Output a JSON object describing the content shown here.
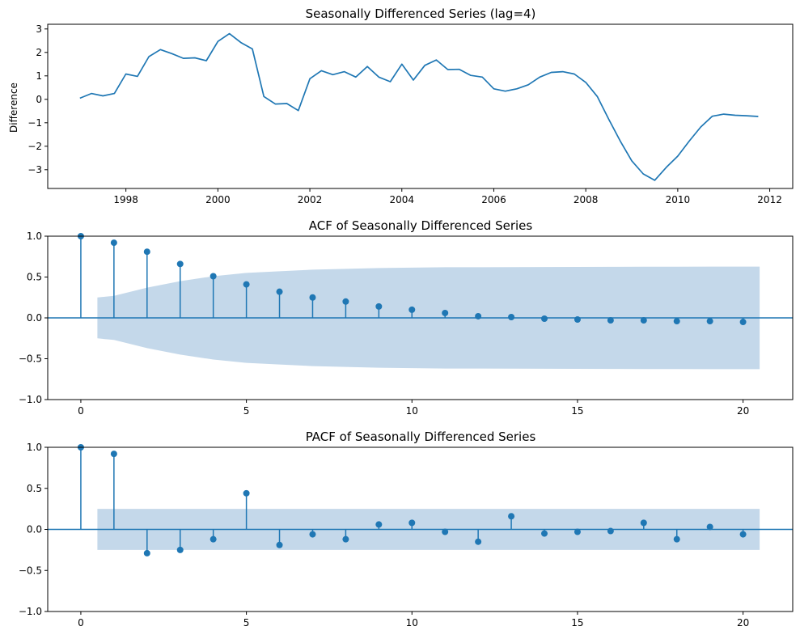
{
  "chart_data": [
    {
      "type": "line",
      "title": "Seasonally Differenced Series (lag=4)",
      "xlabel": "",
      "ylabel": "Difference",
      "xlim": [
        1996.3,
        2012.5
      ],
      "ylim": [
        -3.8,
        3.2
      ],
      "x_ticks": [
        1998,
        2000,
        2002,
        2004,
        2006,
        2008,
        2010,
        2012
      ],
      "y_ticks": [
        -3,
        -2,
        -1,
        0,
        1,
        2,
        3
      ],
      "color": "#1f77b4",
      "x": [
        1997.0,
        1997.25,
        1997.5,
        1997.75,
        1998.0,
        1998.25,
        1998.5,
        1998.75,
        1999.0,
        1999.25,
        1999.5,
        1999.75,
        2000.0,
        2000.25,
        2000.5,
        2000.75,
        2001.0,
        2001.25,
        2001.5,
        2001.75,
        2002.0,
        2002.25,
        2002.5,
        2002.75,
        2003.0,
        2003.25,
        2003.5,
        2003.75,
        2004.0,
        2004.25,
        2004.5,
        2004.75,
        2005.0,
        2005.25,
        2005.5,
        2005.75,
        2006.0,
        2006.25,
        2006.5,
        2006.75,
        2007.0,
        2007.25,
        2007.5,
        2007.75,
        2008.0,
        2008.25,
        2008.5,
        2008.75,
        2009.0,
        2009.25,
        2009.5,
        2009.75,
        2010.0,
        2010.25,
        2010.5,
        2010.75,
        2011.0,
        2011.25,
        2011.5,
        2011.75
      ],
      "y": [
        0.05,
        0.25,
        0.15,
        0.25,
        1.08,
        0.98,
        1.82,
        2.12,
        1.95,
        1.75,
        1.77,
        1.65,
        2.47,
        2.8,
        2.42,
        2.15,
        0.12,
        -0.2,
        -0.18,
        -0.48,
        0.88,
        1.22,
        1.05,
        1.18,
        0.95,
        1.4,
        0.95,
        0.75,
        1.5,
        0.82,
        1.45,
        1.68,
        1.27,
        1.28,
        1.02,
        0.95,
        0.45,
        0.35,
        0.45,
        0.62,
        0.95,
        1.15,
        1.18,
        1.08,
        0.72,
        0.12,
        -0.85,
        -1.78,
        -2.62,
        -3.18,
        -3.45,
        -2.9,
        -2.42,
        -1.78,
        -1.18,
        -0.72,
        -0.63,
        -0.68,
        -0.7,
        -0.73
      ]
    },
    {
      "type": "stem",
      "title": "ACF of Seasonally Differenced Series",
      "xlabel": "",
      "ylabel": "",
      "xlim": [
        -1,
        21.5
      ],
      "ylim": [
        -1.0,
        1.0
      ],
      "x_ticks": [
        0,
        5,
        10,
        15,
        20
      ],
      "y_ticks": [
        -1.0,
        -0.5,
        0.0,
        0.5,
        1.0
      ],
      "y_tick_labels": [
        "−1.0",
        "−0.5",
        "0.0",
        "0.5",
        "1.0"
      ],
      "lags": [
        0,
        1,
        2,
        3,
        4,
        5,
        6,
        7,
        8,
        9,
        10,
        11,
        12,
        13,
        14,
        15,
        16,
        17,
        18,
        19,
        20
      ],
      "values": [
        1.0,
        0.92,
        0.81,
        0.66,
        0.51,
        0.41,
        0.32,
        0.25,
        0.2,
        0.14,
        0.1,
        0.06,
        0.02,
        0.01,
        -0.01,
        -0.02,
        -0.03,
        -0.03,
        -0.04,
        -0.04,
        -0.05
      ],
      "confint_lags": [
        0.5,
        1,
        2,
        3,
        4,
        5,
        6,
        7,
        8,
        9,
        10,
        11,
        12,
        13,
        14,
        15,
        16,
        17,
        18,
        19,
        20,
        20.5
      ],
      "confint_upper": [
        0.25,
        0.27,
        0.37,
        0.45,
        0.51,
        0.55,
        0.57,
        0.59,
        0.6,
        0.61,
        0.615,
        0.62,
        0.62,
        0.622,
        0.623,
        0.624,
        0.625,
        0.626,
        0.627,
        0.628,
        0.628,
        0.628
      ],
      "color": "#1f77b4",
      "band_color": "#c4d8ea"
    },
    {
      "type": "stem",
      "title": "PACF of Seasonally Differenced Series",
      "xlabel": "",
      "ylabel": "",
      "xlim": [
        -1,
        21.5
      ],
      "ylim": [
        -1.0,
        1.0
      ],
      "x_ticks": [
        0,
        5,
        10,
        15,
        20
      ],
      "y_ticks": [
        -1.0,
        -0.5,
        0.0,
        0.5,
        1.0
      ],
      "y_tick_labels": [
        "−1.0",
        "−0.5",
        "0.0",
        "0.5",
        "1.0"
      ],
      "lags": [
        0,
        1,
        2,
        3,
        4,
        5,
        6,
        7,
        8,
        9,
        10,
        11,
        12,
        13,
        14,
        15,
        16,
        17,
        18,
        19,
        20
      ],
      "values": [
        1.0,
        0.92,
        -0.29,
        -0.25,
        -0.12,
        0.44,
        -0.19,
        -0.06,
        -0.12,
        0.06,
        0.08,
        -0.03,
        -0.15,
        0.16,
        -0.05,
        -0.03,
        -0.02,
        0.08,
        -0.12,
        0.03,
        -0.06
      ],
      "confint_lags": [
        0.5,
        20.5
      ],
      "confint_upper": [
        0.25,
        0.25
      ],
      "color": "#1f77b4",
      "band_color": "#c4d8ea"
    }
  ]
}
